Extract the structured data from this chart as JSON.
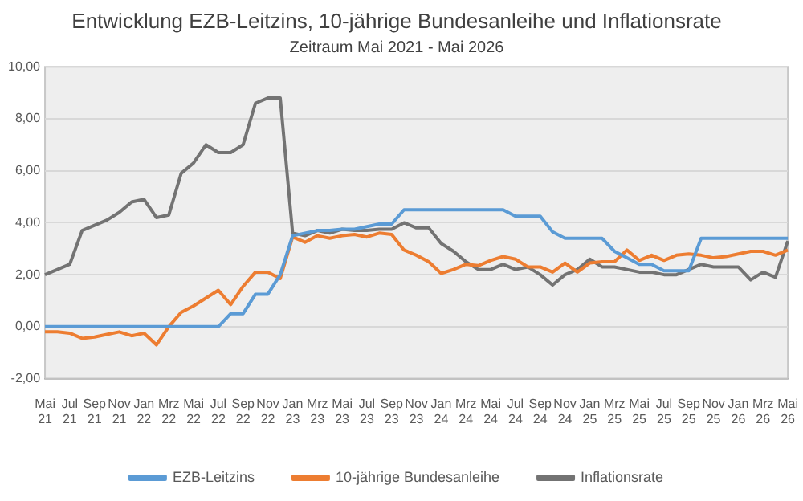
{
  "chart_data": {
    "type": "line",
    "title": "Entwicklung EZB-Leitzins, 10-jährige Bundesanleihe und Inflationsrate",
    "subtitle": "Zeitraum Mai 2021 - Mai 2026",
    "categories": [
      "Mai 21",
      null,
      "Jul 21",
      null,
      "Sep 21",
      null,
      "Nov 21",
      null,
      "Jan 22",
      null,
      "Mrz 22",
      null,
      "Mai 22",
      null,
      "Jul 22",
      null,
      "Sep 22",
      null,
      "Nov 22",
      null,
      "Jan 23",
      null,
      "Mrz 23",
      null,
      "Mai 23",
      null,
      "Jul 23",
      null,
      "Sep 23",
      null,
      "Nov 23",
      null,
      "Jan 24",
      null,
      "Mrz 24",
      null,
      "Mai 24",
      null,
      "Jul 24",
      null,
      "Sep 24",
      null,
      "Nov 24",
      null,
      "Jan 25",
      null,
      "Mrz 25",
      null,
      "Mai 25",
      null,
      "Jul 25",
      null,
      "Sep 25",
      null,
      "Nov 25",
      null,
      "Jan 26",
      null,
      "Mrz 26",
      null,
      "Mai 26"
    ],
    "series": [
      {
        "name": "EZB-Leitzins",
        "color": "#5b9bd5",
        "values": [
          0,
          0,
          0,
          0,
          0,
          0,
          0,
          0,
          0,
          0,
          0,
          0,
          0,
          0,
          0,
          0.5,
          0.5,
          1.25,
          1.25,
          2.0,
          3.5,
          3.6,
          3.7,
          3.7,
          3.75,
          3.75,
          3.85,
          3.95,
          3.95,
          4.5,
          4.5,
          4.5,
          4.5,
          4.5,
          4.5,
          4.5,
          4.5,
          4.5,
          4.25,
          4.25,
          4.25,
          3.65,
          3.4,
          3.4,
          3.4,
          3.4,
          2.9,
          2.65,
          2.4,
          2.4,
          2.15,
          2.15,
          2.15,
          3.4,
          3.4,
          3.4,
          3.4,
          3.4,
          3.4,
          3.4,
          3.4
        ]
      },
      {
        "name": "10-jährige Bundesanleihe",
        "color": "#ed7d31",
        "values": [
          -0.2,
          -0.2,
          -0.25,
          -0.45,
          -0.4,
          -0.3,
          -0.2,
          -0.35,
          -0.25,
          -0.7,
          0.0,
          0.55,
          0.8,
          1.1,
          1.4,
          0.85,
          1.55,
          2.1,
          2.1,
          1.85,
          3.45,
          3.25,
          3.5,
          3.4,
          3.5,
          3.55,
          3.45,
          3.6,
          3.55,
          2.95,
          2.75,
          2.5,
          2.05,
          2.2,
          2.4,
          2.35,
          2.55,
          2.7,
          2.6,
          2.3,
          2.3,
          2.1,
          2.45,
          2.1,
          2.45,
          2.5,
          2.5,
          2.95,
          2.55,
          2.75,
          2.55,
          2.75,
          2.8,
          2.75,
          2.65,
          2.7,
          2.8,
          2.9,
          2.9,
          2.75,
          2.95
        ]
      },
      {
        "name": "Inflationsrate",
        "color": "#737373",
        "values": [
          2.0,
          2.2,
          2.4,
          3.7,
          3.9,
          4.1,
          4.4,
          4.8,
          4.9,
          4.2,
          4.3,
          5.9,
          6.3,
          7.0,
          6.7,
          6.7,
          7.0,
          8.6,
          8.8,
          8.8,
          3.6,
          3.5,
          3.7,
          3.6,
          3.75,
          3.7,
          3.7,
          3.75,
          3.75,
          4.0,
          3.8,
          3.8,
          3.2,
          2.9,
          2.5,
          2.2,
          2.2,
          2.4,
          2.2,
          2.3,
          2.0,
          1.6,
          2.0,
          2.2,
          2.6,
          2.3,
          2.3,
          2.2,
          2.1,
          2.1,
          2.0,
          2.0,
          2.2,
          2.4,
          2.3,
          2.3,
          2.3,
          1.8,
          2.1,
          1.9,
          3.3
        ]
      }
    ],
    "ylim": [
      -2,
      10
    ],
    "yticks": [
      {
        "value": -2,
        "label": "-2,00"
      },
      {
        "value": 0,
        "label": "0,00"
      },
      {
        "value": 2,
        "label": "2,00"
      },
      {
        "value": 4,
        "label": "4,00"
      },
      {
        "value": 6,
        "label": "6,00"
      },
      {
        "value": 8,
        "label": "8,00"
      },
      {
        "value": 10,
        "label": "10,00"
      }
    ],
    "grid": "y",
    "legend": "bottom",
    "marker": "none",
    "line_style": "solid"
  }
}
